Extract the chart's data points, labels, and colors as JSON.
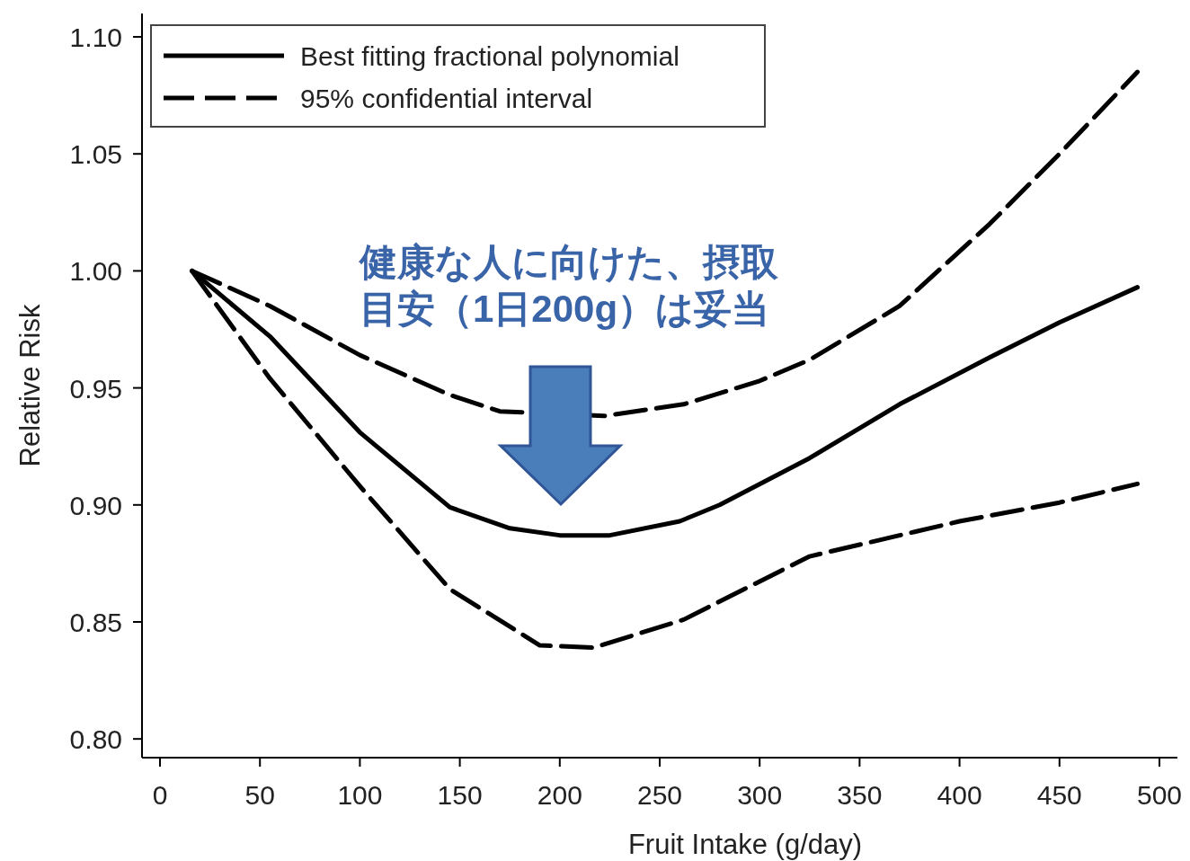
{
  "chart_data": {
    "type": "line",
    "xlabel": "Fruit Intake (g/day)",
    "ylabel": "Relative Risk",
    "xlim": [
      -9,
      509
    ],
    "ylim": [
      0.792,
      1.11
    ],
    "xticks": [
      0,
      50,
      100,
      150,
      200,
      250,
      300,
      350,
      400,
      450,
      500
    ],
    "yticks": [
      {
        "value": 0.8,
        "label": "0.80"
      },
      {
        "value": 0.85,
        "label": "0.85"
      },
      {
        "value": 0.9,
        "label": "0.90"
      },
      {
        "value": 0.95,
        "label": "0.95"
      },
      {
        "value": 1.0,
        "label": "1.00"
      },
      {
        "value": 1.05,
        "label": "1.05"
      },
      {
        "value": 1.1,
        "label": "1.10"
      }
    ],
    "grid": false,
    "legend": "top left",
    "annotations": [
      "健康な人に向けた、摂取",
      "目安（1日200g）は妥当"
    ],
    "series": [
      {
        "name": "Best fitting fractional polynomial",
        "color": "#000000",
        "line_style": "solid",
        "x": [
          16,
          55,
          100,
          145,
          175,
          200,
          225,
          260,
          280,
          325,
          370,
          415,
          450,
          489
        ],
        "values": [
          1.0,
          0.972,
          0.931,
          0.899,
          0.89,
          0.887,
          0.887,
          0.893,
          0.9,
          0.92,
          0.943,
          0.963,
          0.978,
          0.993
        ]
      },
      {
        "name": "95% confidential interval",
        "color": "#000000",
        "line_style": "dashed",
        "x": [
          16,
          55,
          100,
          145,
          170,
          222,
          262,
          300,
          325,
          370,
          415,
          450,
          489
        ],
        "values": [
          1.0,
          0.985,
          0.964,
          0.947,
          0.94,
          0.938,
          0.943,
          0.953,
          0.962,
          0.985,
          1.02,
          1.05,
          1.085
        ]
      },
      {
        "color": "#000000",
        "line_style": "dashed",
        "x": [
          16,
          55,
          100,
          145,
          190,
          217,
          262,
          325,
          370,
          400,
          450,
          489
        ],
        "values": [
          1.0,
          0.954,
          0.908,
          0.864,
          0.84,
          0.839,
          0.851,
          0.878,
          0.887,
          0.893,
          0.901,
          0.909
        ]
      }
    ]
  }
}
